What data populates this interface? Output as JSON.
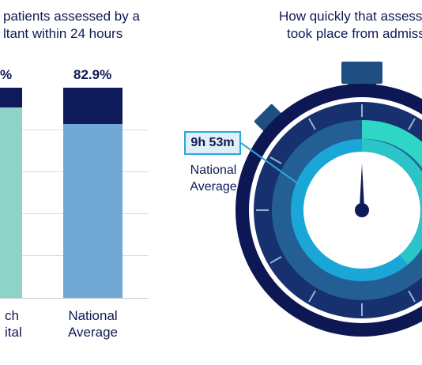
{
  "left_chart": {
    "title_lines": [
      "patients assessed by a",
      "ltant within 24 hours"
    ],
    "bar1_value_label": "%",
    "bar2_value_label": "82.9%",
    "bar1_category_lines": [
      "ch",
      "ital"
    ],
    "bar2_category_lines": [
      "National",
      "Average"
    ]
  },
  "right_chart": {
    "title_lines": [
      "How quickly that assess",
      "took place from admiss"
    ],
    "callout_value": "9h 53m",
    "callout_label_lines": [
      "National",
      "Average"
    ]
  },
  "colors": {
    "navy": "#0f1a5a",
    "mint": "#8dd3c7",
    "steel_blue": "#72a9d4",
    "cyan": "#1fb1dd",
    "teal": "#2fd6c6",
    "ring_dark": "#17306e",
    "ring_mid": "#235f94",
    "gridline": "#d9dbe3"
  },
  "chart_data": [
    {
      "type": "bar",
      "title": "patients assessed by a ltant within 24 hours",
      "categories": [
        "ch ital",
        "National Average"
      ],
      "series": [
        {
          "name": "",
          "values": [
            null,
            82.9
          ]
        }
      ],
      "ylim": [
        0,
        100
      ],
      "grid": true,
      "notes_visible_fill": {
        "bar1_fill_fraction": 0.92,
        "bar2_fill_fraction": 0.829
      }
    },
    {
      "type": "gauge",
      "title": "How quickly that assess took place from admiss",
      "annotations": [
        {
          "label": "National Average",
          "value": "9h 53m"
        }
      ]
    }
  ]
}
